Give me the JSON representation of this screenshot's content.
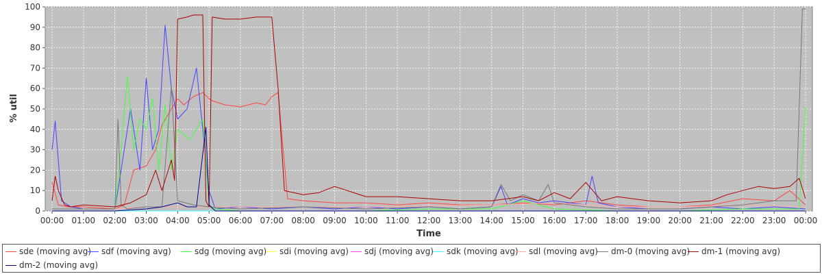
{
  "chart_data": {
    "type": "line",
    "title": "",
    "xlabel": "Time",
    "ylabel": "% util",
    "xlim": [
      0,
      24
    ],
    "ylim": [
      0,
      100
    ],
    "grid": true,
    "legend_position": "bottom",
    "x_ticks": [
      "00:00",
      "01:00",
      "02:00",
      "03:00",
      "04:00",
      "05:00",
      "06:00",
      "07:00",
      "08:00",
      "09:00",
      "10:00",
      "11:00",
      "12:00",
      "13:00",
      "14:00",
      "15:00",
      "16:00",
      "17:00",
      "18:00",
      "19:00",
      "20:00",
      "21:00",
      "22:00",
      "23:00",
      "00:00"
    ],
    "y_ticks": [
      "0",
      "10",
      "20",
      "30",
      "40",
      "50",
      "60",
      "70",
      "80",
      "90",
      "100"
    ],
    "colors": {
      "plot_background": "#c0c0c0",
      "grid": "#ffffff"
    },
    "series": [
      {
        "name": "sde (moving avg)",
        "color": "#ff4444",
        "x": [
          0,
          0.2,
          0.5,
          1,
          2,
          2.3,
          2.6,
          3,
          3.3,
          3.5,
          3.8,
          4,
          4.2,
          4.5,
          4.8,
          5,
          5.1,
          5.5,
          6,
          6.5,
          6.8,
          7,
          7.2,
          7.5,
          8,
          9,
          10,
          11,
          12,
          13,
          14,
          15,
          16,
          17,
          18,
          19,
          20,
          21,
          22,
          23,
          23.5,
          24
        ],
        "y": [
          14,
          3,
          2,
          2,
          1,
          3,
          20,
          22,
          30,
          42,
          50,
          55,
          52,
          56,
          58,
          55,
          54,
          52,
          51,
          53,
          52,
          56,
          58,
          6,
          5,
          4,
          4,
          3,
          4,
          3,
          3,
          4,
          3,
          5,
          3,
          2,
          2,
          3,
          6,
          5,
          10,
          3
        ]
      },
      {
        "name": "sdf (moving avg)",
        "color": "#4444ff",
        "x": [
          0,
          0.1,
          0.3,
          0.6,
          1,
          2,
          2.2,
          2.5,
          2.8,
          3,
          3.2,
          3.4,
          3.6,
          3.8,
          4,
          4.3,
          4.6,
          4.8,
          5,
          5.2,
          6,
          7,
          8,
          9,
          10,
          11,
          12,
          13,
          14,
          14.3,
          14.5,
          15,
          15.5,
          16,
          17,
          17.2,
          17.4,
          18,
          19,
          20,
          21,
          22,
          23,
          24
        ],
        "y": [
          30,
          44,
          5,
          2,
          1,
          1,
          20,
          50,
          20,
          65,
          30,
          40,
          91,
          60,
          45,
          50,
          70,
          40,
          10,
          1,
          2,
          1,
          2,
          1,
          2,
          1,
          2,
          1,
          2,
          12,
          3,
          6,
          4,
          5,
          3,
          17,
          4,
          2,
          1,
          1,
          2,
          1,
          2,
          1
        ]
      },
      {
        "name": "sdg (moving avg)",
        "color": "#44ff44",
        "x": [
          0,
          0.5,
          1,
          2,
          2.2,
          2.4,
          2.6,
          2.8,
          3,
          3.2,
          3.4,
          3.6,
          3.8,
          4,
          4.4,
          4.8,
          5,
          5.2,
          6,
          8,
          10,
          12,
          14,
          15,
          16,
          18,
          20,
          22,
          23,
          23.8,
          24
        ],
        "y": [
          1,
          1,
          1,
          1,
          30,
          66,
          30,
          45,
          40,
          55,
          20,
          52,
          20,
          40,
          35,
          45,
          3,
          1,
          0,
          0,
          0,
          1,
          1,
          5,
          1,
          0,
          0,
          1,
          1,
          1,
          51
        ]
      },
      {
        "name": "sdi (moving avg)",
        "color": "#ffff44",
        "x": [
          0,
          24
        ],
        "y": [
          0,
          0
        ]
      },
      {
        "name": "sdj (moving avg)",
        "color": "#ff44ff",
        "x": [
          0,
          24
        ],
        "y": [
          0,
          0
        ]
      },
      {
        "name": "sdk (moving avg)",
        "color": "#44ffff",
        "x": [
          0,
          24
        ],
        "y": [
          0,
          0
        ]
      },
      {
        "name": "sdl (moving avg)",
        "color": "#ffaaaa",
        "x": [
          0,
          2,
          3,
          5,
          7.5,
          10,
          14,
          16,
          18,
          20,
          22,
          24
        ],
        "y": [
          1,
          1,
          2,
          2,
          2,
          2,
          3,
          4,
          2,
          2,
          3,
          2
        ]
      },
      {
        "name": "dm-0 (moving avg)",
        "color": "#777777",
        "x": [
          0,
          0.5,
          1,
          2,
          2.1,
          2.2,
          2.4,
          3,
          3.5,
          3.8,
          4,
          4.5,
          5,
          6,
          8,
          10,
          12,
          13,
          14,
          14.3,
          14.6,
          15,
          15.5,
          15.8,
          16,
          17,
          18,
          20,
          22,
          23,
          23.7,
          23.9,
          24
        ],
        "y": [
          1,
          1,
          1,
          1,
          45,
          3,
          1,
          2,
          2,
          61,
          5,
          3,
          2,
          1,
          2,
          1,
          2,
          1,
          2,
          13,
          5,
          8,
          5,
          13,
          4,
          2,
          1,
          1,
          3,
          5,
          5,
          99,
          99
        ]
      },
      {
        "name": "dm-1 (moving avg)",
        "color": "#aa0000",
        "x": [
          0,
          0.1,
          0.2,
          0.4,
          0.6,
          1,
          2,
          2.5,
          3,
          3.3,
          3.5,
          3.8,
          3.9,
          4,
          4.3,
          4.5,
          4.8,
          4.9,
          5,
          5.1,
          5.5,
          6,
          6.5,
          7,
          7.2,
          7.4,
          8,
          8.5,
          9,
          10,
          11,
          12,
          13,
          14,
          15,
          15.5,
          16,
          16.5,
          17,
          17.5,
          18,
          19,
          20,
          21,
          21.5,
          22,
          22.5,
          23,
          23.5,
          23.8,
          24
        ],
        "y": [
          5,
          17,
          10,
          3,
          2,
          3,
          2,
          4,
          8,
          20,
          10,
          25,
          15,
          94,
          95,
          96,
          96,
          5,
          2,
          95,
          94,
          94,
          95,
          95,
          60,
          10,
          8,
          9,
          12,
          7,
          7,
          6,
          5,
          5,
          7,
          5,
          9,
          6,
          14,
          5,
          7,
          5,
          4,
          5,
          8,
          10,
          12,
          11,
          12,
          16,
          6
        ]
      },
      {
        "name": "dm-2 (moving avg)",
        "color": "#000088",
        "x": [
          0,
          1,
          2,
          3,
          3.5,
          4,
          4.3,
          4.6,
          4.9,
          5,
          5.2,
          6,
          8,
          10,
          12,
          24
        ],
        "y": [
          0,
          0,
          0,
          1,
          2,
          4,
          2,
          2,
          41,
          3,
          0,
          0,
          0,
          0,
          0,
          0
        ]
      }
    ]
  }
}
